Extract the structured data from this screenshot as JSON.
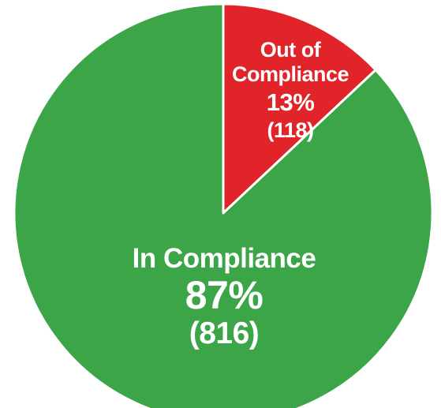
{
  "chart_data": {
    "type": "pie",
    "categories": [
      "Out of Compliance",
      "In Compliance"
    ],
    "values": [
      13,
      87
    ],
    "value_labels": [
      "13%",
      "87%"
    ],
    "counts": [
      118,
      816
    ],
    "count_labels": [
      "(118)",
      "(816)"
    ],
    "colors": [
      "#e0242a",
      "#3ba548"
    ]
  }
}
